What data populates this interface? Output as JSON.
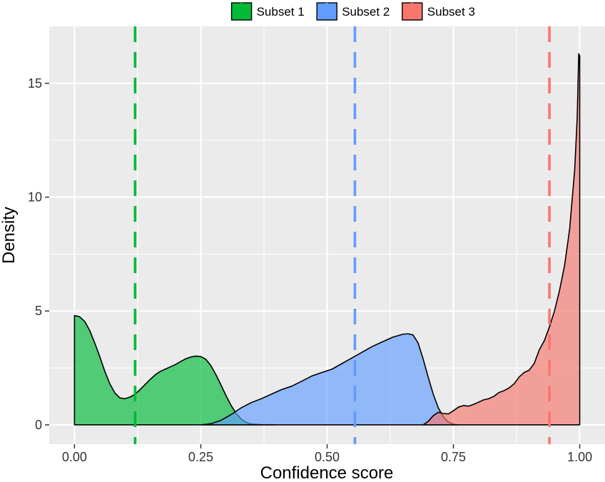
{
  "chart_data": {
    "type": "area",
    "xlabel": "Confidence score",
    "ylabel": "Density",
    "xlim": [
      -0.05,
      1.05
    ],
    "ylim": [
      -0.85,
      17.5
    ],
    "x_ticks": [
      {
        "value": 0.0,
        "label": "0.00"
      },
      {
        "value": 0.25,
        "label": "0.25"
      },
      {
        "value": 0.5,
        "label": "0.50"
      },
      {
        "value": 0.75,
        "label": "0.75"
      },
      {
        "value": 1.0,
        "label": "1.00"
      }
    ],
    "y_ticks": [
      {
        "value": 0,
        "label": "0"
      },
      {
        "value": 5,
        "label": "5"
      },
      {
        "value": 10,
        "label": "10"
      },
      {
        "value": 15,
        "label": "15"
      }
    ],
    "grid": true,
    "legend_position": "top",
    "series": [
      {
        "name": "Subset 1",
        "color": "#00ba38",
        "mean_line": 0.12,
        "points": [
          [
            0.0,
            0.0
          ],
          [
            0.0,
            4.8
          ],
          [
            0.01,
            4.75
          ],
          [
            0.02,
            4.55
          ],
          [
            0.03,
            4.15
          ],
          [
            0.04,
            3.6
          ],
          [
            0.05,
            3.0
          ],
          [
            0.06,
            2.35
          ],
          [
            0.07,
            1.8
          ],
          [
            0.08,
            1.4
          ],
          [
            0.09,
            1.18
          ],
          [
            0.1,
            1.15
          ],
          [
            0.11,
            1.22
          ],
          [
            0.12,
            1.35
          ],
          [
            0.13,
            1.55
          ],
          [
            0.14,
            1.78
          ],
          [
            0.15,
            2.0
          ],
          [
            0.16,
            2.2
          ],
          [
            0.17,
            2.35
          ],
          [
            0.18,
            2.45
          ],
          [
            0.19,
            2.55
          ],
          [
            0.2,
            2.65
          ],
          [
            0.21,
            2.78
          ],
          [
            0.22,
            2.9
          ],
          [
            0.23,
            2.98
          ],
          [
            0.24,
            3.02
          ],
          [
            0.25,
            3.0
          ],
          [
            0.26,
            2.88
          ],
          [
            0.27,
            2.6
          ],
          [
            0.28,
            2.2
          ],
          [
            0.29,
            1.75
          ],
          [
            0.3,
            1.28
          ],
          [
            0.31,
            0.85
          ],
          [
            0.32,
            0.5
          ],
          [
            0.33,
            0.25
          ],
          [
            0.34,
            0.11
          ],
          [
            0.35,
            0.04
          ],
          [
            0.37,
            0.01
          ],
          [
            0.4,
            0.0
          ]
        ]
      },
      {
        "name": "Subset 2",
        "color": "#619cff",
        "mean_line": 0.555,
        "points": [
          [
            0.25,
            0.0
          ],
          [
            0.27,
            0.05
          ],
          [
            0.29,
            0.2
          ],
          [
            0.31,
            0.45
          ],
          [
            0.33,
            0.75
          ],
          [
            0.35,
            0.98
          ],
          [
            0.37,
            1.15
          ],
          [
            0.39,
            1.35
          ],
          [
            0.41,
            1.55
          ],
          [
            0.43,
            1.7
          ],
          [
            0.45,
            1.92
          ],
          [
            0.47,
            2.15
          ],
          [
            0.49,
            2.3
          ],
          [
            0.51,
            2.45
          ],
          [
            0.53,
            2.7
          ],
          [
            0.55,
            2.95
          ],
          [
            0.57,
            3.2
          ],
          [
            0.59,
            3.45
          ],
          [
            0.61,
            3.65
          ],
          [
            0.63,
            3.85
          ],
          [
            0.65,
            3.98
          ],
          [
            0.66,
            4.0
          ],
          [
            0.67,
            3.95
          ],
          [
            0.68,
            3.6
          ],
          [
            0.69,
            2.9
          ],
          [
            0.7,
            2.1
          ],
          [
            0.71,
            1.35
          ],
          [
            0.72,
            0.75
          ],
          [
            0.73,
            0.35
          ],
          [
            0.74,
            0.12
          ],
          [
            0.75,
            0.03
          ],
          [
            0.76,
            0.0
          ]
        ]
      },
      {
        "name": "Subset 3",
        "color": "#f8766d",
        "mean_line": 0.94,
        "points": [
          [
            0.69,
            0.0
          ],
          [
            0.7,
            0.15
          ],
          [
            0.71,
            0.4
          ],
          [
            0.72,
            0.55
          ],
          [
            0.73,
            0.5
          ],
          [
            0.74,
            0.48
          ],
          [
            0.75,
            0.62
          ],
          [
            0.76,
            0.78
          ],
          [
            0.77,
            0.85
          ],
          [
            0.78,
            0.82
          ],
          [
            0.79,
            0.9
          ],
          [
            0.8,
            1.0
          ],
          [
            0.81,
            1.1
          ],
          [
            0.82,
            1.15
          ],
          [
            0.83,
            1.25
          ],
          [
            0.84,
            1.42
          ],
          [
            0.85,
            1.5
          ],
          [
            0.86,
            1.62
          ],
          [
            0.87,
            1.8
          ],
          [
            0.88,
            2.1
          ],
          [
            0.89,
            2.3
          ],
          [
            0.9,
            2.4
          ],
          [
            0.91,
            2.7
          ],
          [
            0.92,
            3.3
          ],
          [
            0.93,
            3.7
          ],
          [
            0.94,
            4.3
          ],
          [
            0.95,
            5.0
          ],
          [
            0.96,
            5.9
          ],
          [
            0.97,
            7.0
          ],
          [
            0.98,
            8.6
          ],
          [
            0.99,
            11.2
          ],
          [
            0.995,
            13.5
          ],
          [
            0.998,
            16.3
          ],
          [
            1.0,
            16.2
          ],
          [
            1.0,
            0.0
          ]
        ]
      }
    ]
  }
}
